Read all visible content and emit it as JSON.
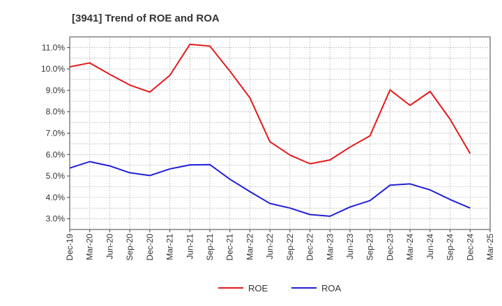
{
  "chart_data": {
    "type": "line",
    "title": "[3941]  Trend of ROE and ROA",
    "xlabel": "",
    "ylabel": "",
    "categories": [
      "Dec-19",
      "Mar-20",
      "Jun-20",
      "Sep-20",
      "Dec-20",
      "Mar-21",
      "Jun-21",
      "Sep-21",
      "Dec-21",
      "Mar-22",
      "Jun-22",
      "Sep-22",
      "Dec-22",
      "Mar-23",
      "Jun-23",
      "Sep-23",
      "Dec-23",
      "Mar-24",
      "Jun-24",
      "Sep-24",
      "Dec-24",
      "Mar-25"
    ],
    "y_ticks": [
      "3.0%",
      "4.0%",
      "5.0%",
      "6.0%",
      "7.0%",
      "8.0%",
      "9.0%",
      "10.0%",
      "11.0%"
    ],
    "ylim": [
      2.5,
      11.5
    ],
    "grid": true,
    "legend_position": "bottom",
    "series": [
      {
        "name": "ROE",
        "color": "#e31a1c",
        "values": [
          10.1,
          10.28,
          9.75,
          9.25,
          8.92,
          9.7,
          11.15,
          11.07,
          9.9,
          8.65,
          6.6,
          5.98,
          5.57,
          5.75,
          6.35,
          6.88,
          9.02,
          8.3,
          8.95,
          7.65,
          6.05,
          null
        ]
      },
      {
        "name": "ROA",
        "color": "#1f1fd6",
        "values": [
          5.37,
          5.67,
          5.47,
          5.15,
          5.02,
          5.33,
          5.52,
          5.53,
          4.85,
          4.27,
          3.72,
          3.5,
          3.2,
          3.12,
          3.55,
          3.85,
          4.57,
          4.63,
          4.35,
          3.9,
          3.5,
          null
        ]
      }
    ]
  }
}
